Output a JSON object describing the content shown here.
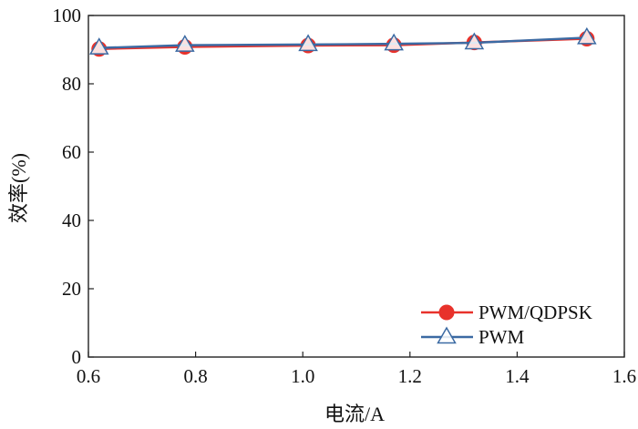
{
  "chart_data": {
    "type": "line",
    "xlabel": "电流/A",
    "ylabel": "效率(%)",
    "xlim": [
      0.6,
      1.6
    ],
    "ylim": [
      0,
      100
    ],
    "xticks": [
      "0.6",
      "0.8",
      "1.0",
      "1.2",
      "1.4",
      "1.6"
    ],
    "yticks": [
      "0",
      "20",
      "40",
      "60",
      "80",
      "100"
    ],
    "grid": false,
    "legend_position": "bottom-right",
    "series": [
      {
        "name": "PWM/QDPSK",
        "marker": "circle",
        "color": "#e8322b",
        "x": [
          0.62,
          0.78,
          1.01,
          1.17,
          1.32,
          1.53
        ],
        "y": [
          90.2,
          90.8,
          91.2,
          91.3,
          92.1,
          93.2
        ]
      },
      {
        "name": "PWM",
        "marker": "triangle",
        "color": "#3b6aa3",
        "x": [
          0.62,
          0.78,
          1.01,
          1.17,
          1.32,
          1.53
        ],
        "y": [
          90.5,
          91.3,
          91.5,
          91.7,
          92.0,
          93.5
        ]
      }
    ]
  }
}
